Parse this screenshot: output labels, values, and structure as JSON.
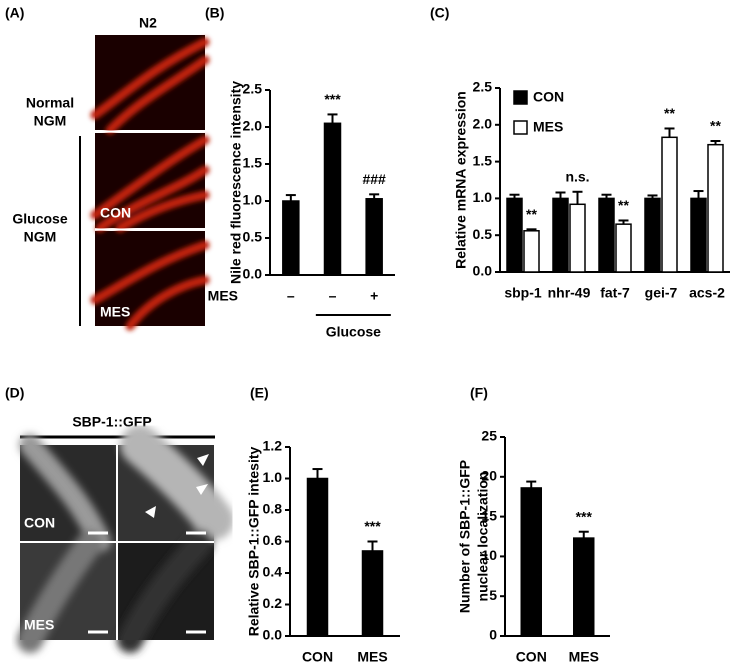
{
  "panel_labels": [
    "(A)",
    "(B)",
    "(C)",
    "(D)",
    "(E)",
    "(F)"
  ],
  "panel_a": {
    "column_label": "N2",
    "row_labels": [
      [
        "Normal",
        "NGM"
      ],
      [
        "Glucose",
        "NGM"
      ]
    ],
    "image_labels": [
      "CON",
      "MES"
    ]
  },
  "panel_d": {
    "title": "SBP-1::GFP",
    "image_labels": [
      "CON",
      "MES"
    ]
  },
  "chart_data": [
    {
      "type": "bar",
      "ylabel": "Nile red fluorescence intensity",
      "categories": [
        "–",
        "–",
        "+"
      ],
      "category_axis_label": "MES",
      "groups": [
        null,
        "Glucose",
        "Glucose"
      ],
      "values": [
        1.0,
        2.05,
        1.03
      ],
      "errors": [
        0.08,
        0.12,
        0.06
      ],
      "color": "#000000",
      "annotations": [
        null,
        "***",
        "###"
      ],
      "ylim": [
        0,
        2.5
      ],
      "yticks": [
        {
          "value": 0,
          "label": "0.0"
        },
        0.5,
        {
          "value": 1,
          "label": "1.0"
        },
        1.5,
        {
          "value": 2,
          "label": "2.0"
        },
        2.5
      ]
    },
    {
      "type": "bar",
      "ylabel": "Relative mRNA expression",
      "categories": [
        "sbp-1",
        "nhr-49",
        "fat-7",
        "gei-7",
        "acs-2"
      ],
      "series": [
        {
          "name": "CON",
          "color": "#000000",
          "values": [
            1.0,
            1.0,
            1.0,
            1.0,
            1.0
          ],
          "errors": [
            0.05,
            0.08,
            0.05,
            0.04,
            0.1
          ]
        },
        {
          "name": "MES",
          "color": "#ffffff",
          "values": [
            0.56,
            0.92,
            0.65,
            1.83,
            1.73
          ],
          "errors": [
            0.02,
            0.17,
            0.05,
            0.12,
            0.05
          ]
        }
      ],
      "annotations": [
        "**",
        "n.s.",
        "**",
        "**",
        "**"
      ],
      "legend": "upper left",
      "ylim": [
        0,
        2.5
      ],
      "yticks": [
        {
          "value": 0,
          "label": "0.0"
        },
        0.5,
        {
          "value": 1,
          "label": "1.0"
        },
        1.5,
        {
          "value": 2,
          "label": "2.0"
        },
        2.5
      ]
    },
    {
      "type": "bar",
      "ylabel": "Relative SBP-1::GFP intesity",
      "categories": [
        "CON",
        "MES"
      ],
      "values": [
        1.0,
        0.54
      ],
      "errors": [
        0.06,
        0.06
      ],
      "color": "#000000",
      "annotations": [
        null,
        "***"
      ],
      "ylim": [
        0,
        1.2
      ],
      "yticks": [
        {
          "value": 0,
          "label": "0.0"
        },
        0.2,
        0.4,
        0.6,
        0.8,
        {
          "value": 1,
          "label": "1.0"
        },
        1.2
      ]
    },
    {
      "type": "bar",
      "ylabel": [
        "Number of SBP-1::GFP",
        "nuclear localization"
      ],
      "categories": [
        "CON",
        "MES"
      ],
      "values": [
        18.6,
        12.3
      ],
      "errors": [
        0.8,
        0.8
      ],
      "color": "#000000",
      "annotations": [
        null,
        "***"
      ],
      "ylim": [
        0,
        25
      ],
      "yticks": [
        0,
        5,
        10,
        15,
        20,
        25
      ]
    }
  ]
}
